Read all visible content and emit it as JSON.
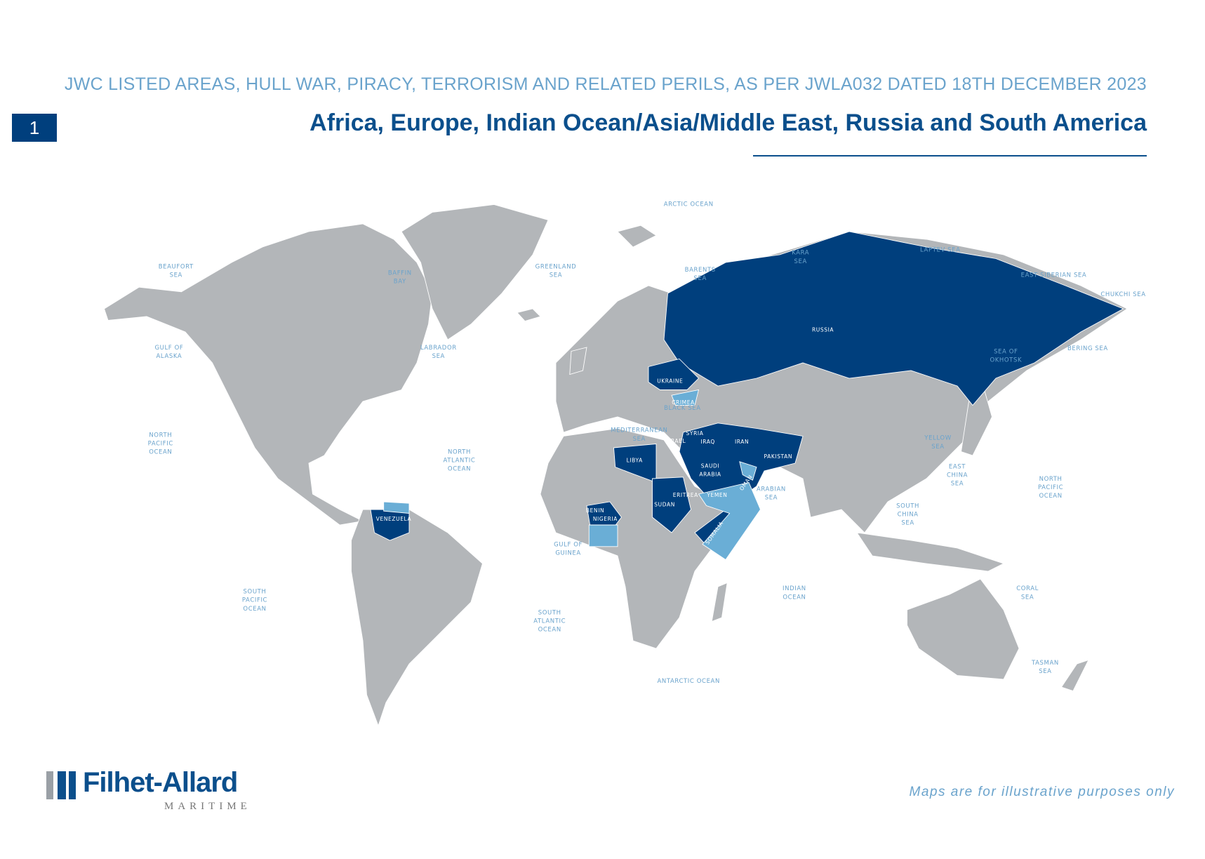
{
  "header": {
    "subtitle": "JWC LISTED AREAS, HULL WAR, PIRACY, TERRORISM AND RELATED PERILS, AS PER JWLA032 DATED 18TH DECEMBER 2023",
    "page_number": "1",
    "title": "Africa, Europe, Indian Ocean/Asia/Middle East, Russia and South America"
  },
  "map": {
    "sea_labels": [
      {
        "lines": [
          "ARCTIC OCEAN"
        ]
      },
      {
        "lines": [
          "BEAUFORT",
          "SEA"
        ]
      },
      {
        "lines": [
          "BAFFIN",
          "BAY"
        ]
      },
      {
        "lines": [
          "GREENLAND",
          "SEA"
        ]
      },
      {
        "lines": [
          "BARENTS",
          "SEA"
        ]
      },
      {
        "lines": [
          "KARA",
          "SEA"
        ]
      },
      {
        "lines": [
          "LAPTEV SEA"
        ]
      },
      {
        "lines": [
          "EAST SIBERIAN SEA"
        ]
      },
      {
        "lines": [
          "CHUKCHI SEA"
        ]
      },
      {
        "lines": [
          "GULF OF",
          "ALASKA"
        ]
      },
      {
        "lines": [
          "LABRADOR",
          "SEA"
        ]
      },
      {
        "lines": [
          "SEA OF",
          "OKHOTSK"
        ]
      },
      {
        "lines": [
          "BERING SEA"
        ]
      },
      {
        "lines": [
          "BLACK SEA"
        ]
      },
      {
        "lines": [
          "MEDITERRANEAN",
          "SEA"
        ]
      },
      {
        "lines": [
          "NORTH",
          "PACIFIC",
          "OCEAN"
        ]
      },
      {
        "lines": [
          "NORTH",
          "ATLANTIC",
          "OCEAN"
        ]
      },
      {
        "lines": [
          "YELLOW",
          "SEA"
        ]
      },
      {
        "lines": [
          "EAST",
          "CHINA",
          "SEA"
        ]
      },
      {
        "lines": [
          "NORTH",
          "PACIFIC",
          "OCEAN"
        ]
      },
      {
        "lines": [
          "ARABIAN",
          "SEA"
        ]
      },
      {
        "lines": [
          "SOUTH",
          "CHINA",
          "SEA"
        ]
      },
      {
        "lines": [
          "GULF OF",
          "GUINEA"
        ]
      },
      {
        "lines": [
          "INDIAN",
          "OCEAN"
        ]
      },
      {
        "lines": [
          "CORAL",
          "SEA"
        ]
      },
      {
        "lines": [
          "SOUTH",
          "PACIFIC",
          "OCEAN"
        ]
      },
      {
        "lines": [
          "SOUTH",
          "ATLANTIC",
          "OCEAN"
        ]
      },
      {
        "lines": [
          "TASMAN",
          "SEA"
        ]
      },
      {
        "lines": [
          "ANTARCTIC OCEAN"
        ]
      }
    ],
    "country_labels": [
      {
        "lines": [
          "RUSSIA"
        ]
      },
      {
        "lines": [
          "UKRAINE"
        ]
      },
      {
        "lines": [
          "CRIMEA"
        ]
      },
      {
        "lines": [
          "SYRIA"
        ]
      },
      {
        "lines": [
          "ISRAEL"
        ]
      },
      {
        "lines": [
          "IRAQ"
        ]
      },
      {
        "lines": [
          "IRAN"
        ]
      },
      {
        "lines": [
          "LIBYA"
        ]
      },
      {
        "lines": [
          "SAUDI",
          "ARABIA"
        ]
      },
      {
        "lines": [
          "PAKISTAN"
        ]
      },
      {
        "lines": [
          "OMAN"
        ]
      },
      {
        "lines": [
          "ERITREA"
        ]
      },
      {
        "lines": [
          "YEMEN"
        ]
      },
      {
        "lines": [
          "SUDAN"
        ]
      },
      {
        "lines": [
          "SOMALIA"
        ]
      },
      {
        "lines": [
          "BENIN"
        ]
      },
      {
        "lines": [
          "NIGERIA"
        ]
      },
      {
        "lines": [
          "VENEZUELA"
        ]
      }
    ]
  },
  "footer": {
    "logo": {
      "name": "Filhet-Allard",
      "tagline": "MARITIME"
    },
    "note": "Maps are for illustrative purposes only"
  }
}
